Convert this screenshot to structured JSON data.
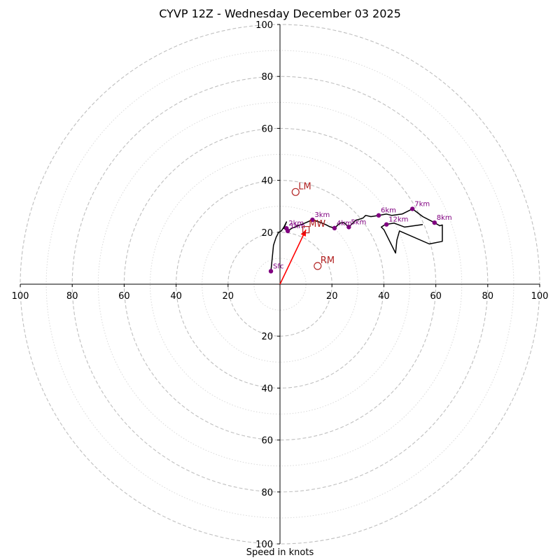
{
  "chart_data": {
    "type": "hodograph",
    "title": "CYVP 12Z - Wednesday December 03 2025",
    "xlabel": "Speed in knots",
    "ring_labels": [
      "20",
      "40",
      "60",
      "80",
      "100"
    ],
    "axis_max": 100,
    "major_ring_step": 20,
    "minor_ring_step": 10,
    "colors": {
      "trace": "#000000",
      "height_marker": "#800080",
      "motion": "#b22222",
      "mean_wind_vector": "#ff0000",
      "ring_major": "#bfbfbf",
      "ring_minor": "#d9d9d9"
    },
    "trace_uv": [
      [
        -3.5,
        5
      ],
      [
        -3,
        10
      ],
      [
        -2.5,
        15
      ],
      [
        -1.5,
        18
      ],
      [
        -0.5,
        20
      ],
      [
        0.5,
        20.5
      ],
      [
        1.5,
        22
      ],
      [
        2.5,
        24
      ],
      [
        1.5,
        21.5
      ],
      [
        2.5,
        21
      ],
      [
        3,
        20.5
      ],
      [
        4.5,
        21.5
      ],
      [
        7,
        22.5
      ],
      [
        9.5,
        23.5
      ],
      [
        12.5,
        24.8
      ],
      [
        15,
        24
      ],
      [
        17.5,
        23
      ],
      [
        19,
        22.2
      ],
      [
        21,
        21.6
      ],
      [
        23,
        23.5
      ],
      [
        24.5,
        23.8
      ],
      [
        26.5,
        22
      ],
      [
        29,
        24.5
      ],
      [
        32,
        25.5
      ],
      [
        33,
        26.5
      ],
      [
        35,
        26
      ],
      [
        38,
        26.5
      ],
      [
        41,
        27
      ],
      [
        43,
        26.5
      ],
      [
        47,
        27
      ],
      [
        51,
        29
      ],
      [
        55,
        26
      ],
      [
        59.5,
        23.7
      ],
      [
        61.5,
        22.5
      ],
      [
        62.5,
        22.8
      ],
      [
        62.5,
        16.5
      ],
      [
        57.5,
        15.5
      ],
      [
        46,
        20.5
      ],
      [
        45,
        17
      ],
      [
        44.5,
        12
      ],
      [
        40,
        21
      ],
      [
        39,
        22
      ],
      [
        40.5,
        23
      ],
      [
        44,
        23.5
      ],
      [
        48,
        22
      ],
      [
        55,
        23
      ]
    ],
    "height_points": [
      {
        "label": "Sfc",
        "u": -3.5,
        "v": 5
      },
      {
        "label": "1km",
        "u": 3,
        "v": 20.5
      },
      {
        "label": "2km",
        "u": 2.5,
        "v": 21.5
      },
      {
        "label": "3km",
        "u": 12.5,
        "v": 24.8
      },
      {
        "label": "4km",
        "u": 21,
        "v": 21.6
      },
      {
        "label": "5km",
        "u": 26.5,
        "v": 22
      },
      {
        "label": "6km",
        "u": 38,
        "v": 26.5
      },
      {
        "label": "7km",
        "u": 51,
        "v": 29
      },
      {
        "label": "8km",
        "u": 59.5,
        "v": 23.7
      },
      {
        "label": "12km",
        "u": 41,
        "v": 23
      }
    ],
    "storm_motions": [
      {
        "label": "LM",
        "u": 6,
        "v": 35.5,
        "marker": "circle"
      },
      {
        "label": "RM",
        "u": 14.5,
        "v": 7,
        "marker": "circle"
      },
      {
        "label": "MW",
        "u": 10,
        "v": 21,
        "marker": "square"
      }
    ],
    "mean_wind_vector": {
      "u": 10,
      "v": 21
    }
  }
}
